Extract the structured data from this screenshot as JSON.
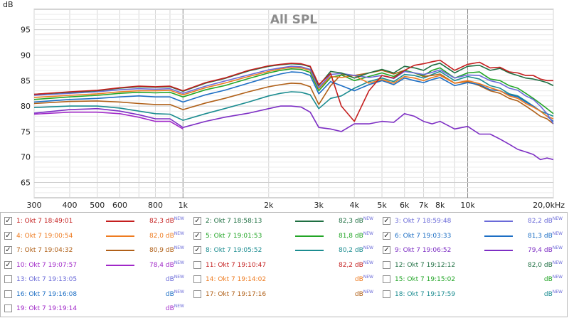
{
  "chart_data": {
    "type": "line",
    "title": "All SPL",
    "ylabel": "dB",
    "xlabel": "",
    "x_scale": "log",
    "xlim": [
      300,
      20000
    ],
    "ylim": [
      62,
      99
    ],
    "x_ticks": [
      {
        "value": 300,
        "label": "300"
      },
      {
        "value": 400,
        "label": "400"
      },
      {
        "value": 500,
        "label": "500"
      },
      {
        "value": 600,
        "label": "600"
      },
      {
        "value": 800,
        "label": "800"
      },
      {
        "value": 1000,
        "label": "1k"
      },
      {
        "value": 2000,
        "label": "2k"
      },
      {
        "value": 3000,
        "label": "3k"
      },
      {
        "value": 4000,
        "label": "4k"
      },
      {
        "value": 5000,
        "label": "5k"
      },
      {
        "value": 6000,
        "label": "6k"
      },
      {
        "value": 7000,
        "label": "7k"
      },
      {
        "value": 8000,
        "label": "8k"
      },
      {
        "value": 10000,
        "label": "10k"
      },
      {
        "value": 20000,
        "label": "20,0kHz"
      }
    ],
    "y_ticks": [
      65,
      70,
      75,
      80,
      85,
      90,
      95
    ],
    "x_minor_gridlines": [
      300,
      400,
      500,
      600,
      700,
      800,
      900,
      1000,
      2000,
      3000,
      4000,
      5000,
      6000,
      7000,
      8000,
      9000,
      10000,
      20000
    ],
    "x_major_gridlines": [
      1000,
      10000
    ],
    "grid": true,
    "x_freq": [
      300,
      400,
      500,
      600,
      700,
      800,
      900,
      1000,
      1200,
      1400,
      1700,
      2000,
      2200,
      2400,
      2600,
      2800,
      3000,
      3300,
      3600,
      4000,
      4500,
      5000,
      5500,
      6000,
      6500,
      7000,
      7500,
      8000,
      9000,
      10000,
      11000,
      12000,
      13000,
      14000,
      15000,
      16000,
      17000,
      18000,
      19000,
      20000
    ],
    "series": [
      {
        "name": "1: Okt 7 18:49:01",
        "color": "#c41e1e",
        "value": "82,3",
        "values": [
          82.3,
          82.8,
          83.1,
          83.6,
          83.9,
          83.8,
          83.9,
          83.0,
          84.6,
          85.5,
          87.0,
          87.9,
          88.2,
          88.4,
          88.3,
          87.8,
          84.2,
          86.4,
          80.0,
          77.0,
          83.0,
          86.0,
          85.5,
          87.0,
          88.0,
          88.3,
          88.7,
          89.0,
          87.0,
          88.2,
          88.6,
          87.5,
          87.6,
          86.7,
          86.5,
          86.0,
          86.0,
          85.3,
          85.0,
          85.0
        ]
      },
      {
        "name": "2: Okt 7 18:58:13",
        "color": "#1f6f42",
        "value": "82,3",
        "values": [
          82.3,
          82.7,
          83.0,
          83.5,
          83.8,
          83.7,
          83.8,
          82.9,
          84.5,
          85.4,
          86.9,
          87.8,
          88.1,
          88.3,
          88.2,
          87.7,
          84.0,
          86.8,
          86.5,
          85.5,
          86.5,
          87.2,
          86.5,
          87.8,
          87.5,
          87.0,
          88.0,
          88.4,
          86.5,
          87.8,
          88.0,
          87.0,
          87.4,
          86.5,
          86.0,
          85.5,
          85.3,
          85.0,
          84.6,
          84.0
        ]
      },
      {
        "name": "3: Okt 7 18:59:48",
        "color": "#6a6ad8",
        "value": "82,2",
        "values": [
          82.1,
          82.5,
          82.8,
          83.2,
          83.4,
          83.3,
          83.4,
          82.5,
          83.9,
          84.9,
          86.1,
          87.1,
          87.5,
          87.8,
          87.7,
          87.2,
          83.6,
          86.2,
          86.4,
          86.0,
          85.6,
          86.0,
          85.4,
          86.8,
          86.5,
          86.2,
          86.6,
          87.1,
          85.5,
          86.1,
          86.0,
          85.0,
          84.5,
          83.5,
          83.1,
          82.0,
          81.3,
          80.0,
          78.5,
          76.5
        ]
      },
      {
        "name": "4: Okt 7 19:00:54",
        "color": "#ee7b20",
        "value": "82,0",
        "values": [
          81.7,
          82.1,
          82.4,
          82.8,
          83.0,
          83.0,
          83.1,
          82.2,
          83.6,
          84.5,
          85.8,
          86.8,
          87.3,
          87.6,
          87.5,
          87.0,
          83.4,
          85.8,
          85.6,
          86.0,
          84.5,
          85.2,
          84.5,
          85.8,
          85.5,
          85.0,
          85.6,
          86.0,
          84.5,
          85.0,
          84.4,
          83.6,
          83.0,
          82.0,
          81.5,
          80.5,
          79.8,
          79.0,
          78.0,
          77.5
        ]
      },
      {
        "name": "5: Okt 7 19:01:53",
        "color": "#22a526",
        "value": "81,8",
        "values": [
          81.3,
          81.8,
          82.1,
          82.5,
          82.7,
          82.6,
          82.7,
          81.8,
          83.2,
          84.0,
          85.4,
          86.5,
          87.0,
          87.3,
          87.2,
          86.6,
          83.0,
          85.6,
          86.1,
          85.0,
          85.8,
          86.5,
          85.8,
          87.0,
          86.5,
          86.0,
          87.0,
          87.5,
          85.5,
          86.5,
          86.7,
          85.3,
          85.0,
          84.0,
          83.5,
          82.5,
          81.5,
          80.5,
          79.5,
          78.5
        ]
      },
      {
        "name": "6: Okt 7 19:03:33",
        "color": "#1c6ec4",
        "value": "81,3",
        "values": [
          80.8,
          81.3,
          81.5,
          81.8,
          82.0,
          81.8,
          81.8,
          80.8,
          82.2,
          83.1,
          84.5,
          85.7,
          86.3,
          86.7,
          86.6,
          86.0,
          82.4,
          84.8,
          84.0,
          83.0,
          84.2,
          85.0,
          84.2,
          85.5,
          85.0,
          84.6,
          85.2,
          85.6,
          84.0,
          84.6,
          84.2,
          83.2,
          83.0,
          82.2,
          81.8,
          80.8,
          80.0,
          79.0,
          78.0,
          77.0
        ]
      },
      {
        "name": "7: Okt 7 19:04:32",
        "color": "#b06018",
        "value": "80,9",
        "values": [
          80.5,
          80.9,
          81.0,
          80.8,
          80.5,
          80.3,
          80.3,
          79.3,
          80.6,
          81.5,
          82.8,
          83.8,
          84.2,
          84.5,
          84.4,
          83.8,
          80.3,
          84.0,
          86.2,
          86.0,
          86.5,
          87.0,
          86.3,
          87.0,
          86.5,
          85.8,
          86.0,
          86.3,
          84.5,
          84.8,
          84.0,
          83.0,
          82.5,
          81.5,
          81.0,
          80.0,
          79.0,
          78.0,
          77.5,
          76.5
        ]
      },
      {
        "name": "8: Okt 7 19:05:52",
        "color": "#1b8c90",
        "value": "80,2",
        "values": [
          79.7,
          80.0,
          80.0,
          79.6,
          79.0,
          78.5,
          78.4,
          77.2,
          78.5,
          79.5,
          80.8,
          82.0,
          82.5,
          82.8,
          82.7,
          82.2,
          79.5,
          81.5,
          82.0,
          83.5,
          84.8,
          85.5,
          84.8,
          86.2,
          86.0,
          85.5,
          86.2,
          86.8,
          85.0,
          85.8,
          85.3,
          84.0,
          83.5,
          82.4,
          82.0,
          81.0,
          80.0,
          79.0,
          78.5,
          78.0
        ]
      },
      {
        "name": "9: Okt 7 19:06:52",
        "color": "#7d2ec4",
        "value": "79,4",
        "values": [
          78.6,
          79.3,
          79.5,
          79.0,
          78.3,
          77.5,
          77.5,
          75.8,
          77.0,
          77.8,
          78.6,
          79.5,
          80.0,
          80.0,
          79.8,
          78.8,
          75.8,
          75.5,
          75.0,
          76.5,
          76.5,
          77.0,
          76.8,
          78.5,
          78.0,
          77.0,
          76.5,
          77.0,
          75.5,
          76.0,
          74.5,
          74.5,
          73.5,
          72.5,
          71.5,
          71.0,
          70.5,
          69.5,
          69.8,
          69.5
        ]
      },
      {
        "name": "10: Okt 7 19:07:57",
        "color": "#a028c8",
        "value": "78,4",
        "values": [
          78.4,
          78.8,
          78.8,
          78.5,
          77.8,
          77.0,
          77.0,
          75.5
        ]
      },
      {
        "name": "11: Okt 7 19:10:47",
        "color": "#c41e1e",
        "value": "82,2",
        "values": []
      },
      {
        "name": "12: Okt 7 19:12:12",
        "color": "#1f6f42",
        "value": "82,0",
        "values": []
      },
      {
        "name": "13: Okt 7 19:13:05",
        "color": "#6a6ad8",
        "value": "",
        "values": []
      },
      {
        "name": "14: Okt 7 19:14:02",
        "color": "#ee7b20",
        "value": "",
        "values": []
      },
      {
        "name": "15: Okt 7 19:15:02",
        "color": "#22a526",
        "value": "",
        "values": []
      },
      {
        "name": "16: Okt 7 19:16:08",
        "color": "#1c6ec4",
        "value": "",
        "values": []
      },
      {
        "name": "17: Okt 7 19:17:16",
        "color": "#b06018",
        "value": "",
        "values": []
      },
      {
        "name": "18: Okt 7 19:17:59",
        "color": "#1b8c90",
        "value": "",
        "values": []
      },
      {
        "name": "19: Okt 7 19:19:14",
        "color": "#a028c8",
        "value": "",
        "values": []
      }
    ]
  },
  "legend": {
    "unit": "dB",
    "new_badge": "NEW",
    "checkmark": "✓",
    "items": [
      {
        "label": "1: Okt 7 18:49:01",
        "checked": true,
        "color": "#c41e1e",
        "value": "82,3"
      },
      {
        "label": "2: Okt 7 18:58:13",
        "checked": true,
        "color": "#1f6f42",
        "value": "82,3"
      },
      {
        "label": "3: Okt 7 18:59:48",
        "checked": true,
        "color": "#6a6ad8",
        "value": "82,2"
      },
      {
        "label": "4: Okt 7 19:00:54",
        "checked": true,
        "color": "#ee7b20",
        "value": "82,0"
      },
      {
        "label": "5: Okt 7 19:01:53",
        "checked": true,
        "color": "#22a526",
        "value": "81,8"
      },
      {
        "label": "6: Okt 7 19:03:33",
        "checked": true,
        "color": "#1c6ec4",
        "value": "81,3"
      },
      {
        "label": "7: Okt 7 19:04:32",
        "checked": true,
        "color": "#b06018",
        "value": "80,9"
      },
      {
        "label": "8: Okt 7 19:05:52",
        "checked": true,
        "color": "#1b8c90",
        "value": "80,2"
      },
      {
        "label": "9: Okt 7 19:06:52",
        "checked": true,
        "color": "#7d2ec4",
        "value": "79,4"
      },
      {
        "label": "10: Okt 7 19:07:57",
        "checked": true,
        "color": "#a028c8",
        "value": "78,4"
      },
      {
        "label": "11: Okt 7 19:10:47",
        "checked": false,
        "color": "#c41e1e",
        "value": "82,2"
      },
      {
        "label": "12: Okt 7 19:12:12",
        "checked": false,
        "color": "#1f6f42",
        "value": "82,0"
      },
      {
        "label": "13: Okt 7 19:13:05",
        "checked": false,
        "color": "#6a6ad8",
        "value": ""
      },
      {
        "label": "14: Okt 7 19:14:02",
        "checked": false,
        "color": "#ee7b20",
        "value": ""
      },
      {
        "label": "15: Okt 7 19:15:02",
        "checked": false,
        "color": "#22a526",
        "value": ""
      },
      {
        "label": "16: Okt 7 19:16:08",
        "checked": false,
        "color": "#1c6ec4",
        "value": ""
      },
      {
        "label": "17: Okt 7 19:17:16",
        "checked": false,
        "color": "#b06018",
        "value": ""
      },
      {
        "label": "18: Okt 7 19:17:59",
        "checked": false,
        "color": "#1b8c90",
        "value": ""
      },
      {
        "label": "19: Okt 7 19:19:14",
        "checked": false,
        "color": "#a028c8",
        "value": ""
      }
    ]
  }
}
